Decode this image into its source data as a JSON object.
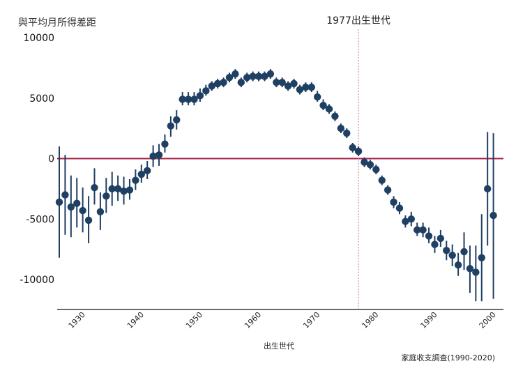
{
  "chart_data": {
    "type": "scatter",
    "title": "",
    "ylabel": "與平均月所得差距",
    "xlabel": "出生世代",
    "source": "家庭收支調查(1990-2020)",
    "annotation": {
      "label": "1977出生世代",
      "x": 1977
    },
    "xlim": [
      1926,
      2001
    ],
    "ylim": [
      -12000,
      10000
    ],
    "yticks": [
      10000,
      5000,
      0,
      -5000,
      -10000
    ],
    "xticks": [
      1930,
      1940,
      1950,
      1960,
      1970,
      1980,
      1990,
      2000
    ],
    "reference_line_y": 0,
    "grid": false,
    "legend": "none",
    "colors": {
      "points": "#1f3f63",
      "zero_line": "#a8204a",
      "annotation_line": "#c9789a"
    },
    "series": [
      {
        "x": [
          1926,
          1927,
          1928,
          1929,
          1930,
          1931,
          1932,
          1933,
          1934,
          1935,
          1936,
          1937,
          1938,
          1939,
          1940,
          1941,
          1942,
          1943,
          1944,
          1945,
          1946,
          1947,
          1948,
          1949,
          1950,
          1951,
          1952,
          1953,
          1954,
          1955,
          1956,
          1957,
          1958,
          1959,
          1960,
          1961,
          1962,
          1963,
          1964,
          1965,
          1966,
          1967,
          1968,
          1969,
          1970,
          1971,
          1972,
          1973,
          1974,
          1975,
          1976,
          1977,
          1978,
          1979,
          1980,
          1981,
          1982,
          1983,
          1984,
          1985,
          1986,
          1987,
          1988,
          1989,
          1990,
          1991,
          1992,
          1993,
          1994,
          1995,
          1996,
          1997,
          1998,
          1999,
          2000
        ],
        "y": [
          -3600,
          -3000,
          -4000,
          -3700,
          -4300,
          -5100,
          -2400,
          -4400,
          -3100,
          -2500,
          -2500,
          -2700,
          -2600,
          -1800,
          -1300,
          -1000,
          200,
          300,
          1200,
          2700,
          3200,
          4900,
          4900,
          4900,
          5200,
          5600,
          6000,
          6200,
          6300,
          6700,
          7000,
          6300,
          6700,
          6800,
          6800,
          6800,
          7000,
          6300,
          6300,
          6000,
          6200,
          5700,
          5900,
          5900,
          5100,
          4400,
          4100,
          3500,
          2500,
          2100,
          900,
          600,
          -300,
          -500,
          -900,
          -1800,
          -2600,
          -3600,
          -4100,
          -5200,
          -5000,
          -5900,
          -5900,
          -6400,
          -7100,
          -6600,
          -7600,
          -8000,
          -8800,
          -7700,
          -9100,
          -9400,
          -8200,
          -2500,
          -4700
        ],
        "lower": [
          -8200,
          -6300,
          -6500,
          -5700,
          -6100,
          -7000,
          -3800,
          -5900,
          -4500,
          -3900,
          -3500,
          -3800,
          -3400,
          -2600,
          -2000,
          -1700,
          -700,
          -600,
          500,
          1800,
          2400,
          4400,
          4400,
          4400,
          4700,
          5200,
          5600,
          5800,
          5900,
          6300,
          6600,
          5900,
          6300,
          6400,
          6400,
          6400,
          6600,
          5900,
          5900,
          5600,
          5800,
          5300,
          5500,
          5500,
          4700,
          4000,
          3700,
          3100,
          2100,
          1700,
          500,
          200,
          -700,
          -900,
          -1300,
          -2200,
          -3000,
          -4100,
          -4600,
          -5700,
          -5600,
          -6400,
          -6500,
          -7000,
          -7800,
          -7300,
          -8400,
          -8900,
          -9700,
          -9200,
          -11100,
          -11800,
          -11800,
          -7200,
          -11600
        ],
        "upper": [
          1000,
          300,
          -1400,
          -1600,
          -2400,
          -3100,
          -800,
          -2800,
          -1600,
          -1100,
          -1400,
          -1500,
          -1700,
          -900,
          -500,
          -200,
          1100,
          1200,
          2000,
          3500,
          4000,
          5500,
          5500,
          5500,
          5800,
          6100,
          6400,
          6600,
          6700,
          7100,
          7400,
          6700,
          7100,
          7200,
          7200,
          7200,
          7400,
          6700,
          6700,
          6400,
          6600,
          6100,
          6300,
          6300,
          5600,
          4900,
          4500,
          3900,
          2900,
          2500,
          1300,
          1000,
          100,
          -100,
          -500,
          -1400,
          -2200,
          -3100,
          -3600,
          -4700,
          -4400,
          -5300,
          -5300,
          -5700,
          -6400,
          -5900,
          -6800,
          -7100,
          -7800,
          -6100,
          -7200,
          -7200,
          -4600,
          2200,
          2100
        ]
      }
    ]
  }
}
